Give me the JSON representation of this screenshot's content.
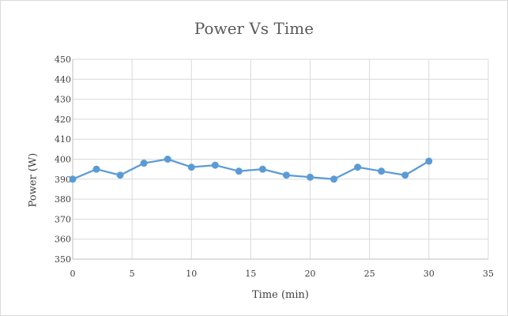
{
  "chart_data": {
    "type": "line",
    "title": "Power Vs Time",
    "xlabel": "Time (min)",
    "ylabel": "Power (W)",
    "xlim": [
      0,
      35
    ],
    "ylim": [
      350,
      450
    ],
    "xticks": [
      0,
      5,
      10,
      15,
      20,
      25,
      30,
      35
    ],
    "yticks": [
      350,
      360,
      370,
      380,
      390,
      400,
      410,
      420,
      430,
      440,
      450
    ],
    "grid": true,
    "legend": "none",
    "series": [
      {
        "color": "#5b9bd5",
        "x": [
          0,
          2,
          4,
          6,
          8,
          10,
          12,
          14,
          16,
          18,
          20,
          22,
          24,
          26,
          28,
          30
        ],
        "y": [
          390,
          395,
          392,
          398,
          400,
          396,
          397,
          394,
          395,
          392,
          391,
          390,
          396,
          394,
          392,
          399
        ]
      }
    ]
  }
}
